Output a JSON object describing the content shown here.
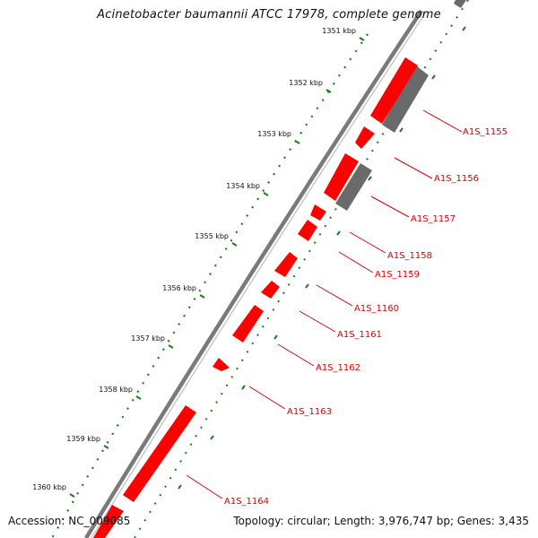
{
  "title": "Acinetobacter baumannii ATCC 17978, complete genome",
  "footer": {
    "accession": "Accession: NC_009085",
    "summary": "Topology: circular; Length: 3,976,747 bp; Genes: 3,435"
  },
  "colors": {
    "forward_gene": "#ff0000",
    "reverse_gene": "#6a6a6a",
    "backbone": "#7a7a7a",
    "ruler": "#1c7c1c",
    "label": "#e00000"
  },
  "ruler_ticks": [
    "1351 kbp",
    "1352 kbp",
    "1353 kbp",
    "1354 kbp",
    "1355 kbp",
    "1356 kbp",
    "1357 kbp",
    "1358 kbp",
    "1359 kbp",
    "1360 kbp"
  ],
  "gene_labels": [
    "A1S_1155",
    "A1S_1156",
    "A1S_1157",
    "A1S_1158",
    "A1S_1159",
    "A1S_1160",
    "A1S_1161",
    "A1S_1162",
    "A1S_1163",
    "A1S_1164"
  ]
}
